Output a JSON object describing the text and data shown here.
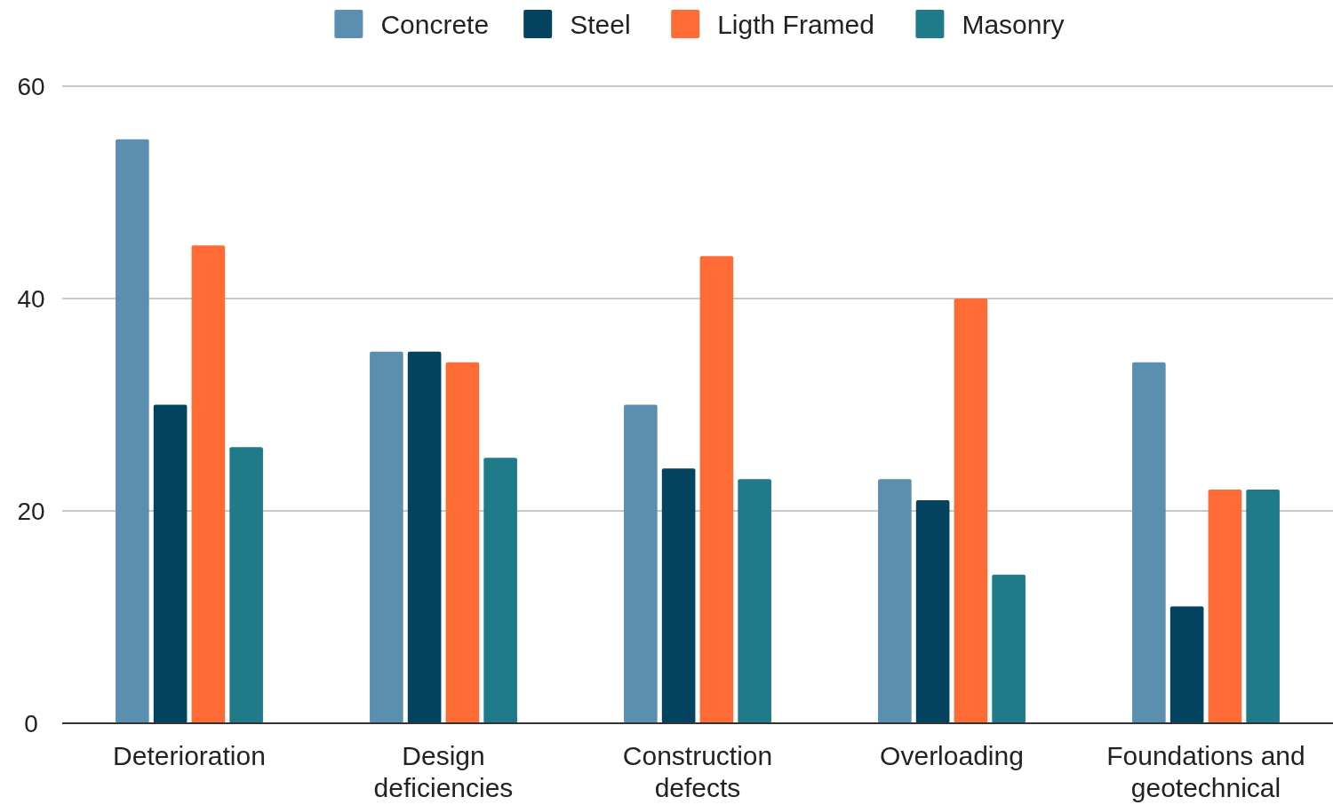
{
  "chart_data": {
    "type": "bar",
    "categories": [
      "Deterioration",
      "Design deficiencies",
      "Construction defects",
      "Overloading",
      "Foundations and geotechnical"
    ],
    "series": [
      {
        "name": "Concrete",
        "color": "#5b8fb0",
        "values": [
          55,
          35,
          30,
          23,
          34
        ]
      },
      {
        "name": "Steel",
        "color": "#03435f",
        "values": [
          30,
          35,
          24,
          21,
          11
        ]
      },
      {
        "name": "Ligth Framed",
        "color": "#ff6b35",
        "values": [
          45,
          34,
          44,
          40,
          22
        ]
      },
      {
        "name": "Masonry",
        "color": "#1f7a89",
        "values": [
          26,
          25,
          23,
          14,
          22
        ]
      }
    ],
    "ylim": [
      0,
      60
    ],
    "yticks": [
      0,
      20,
      40,
      60
    ],
    "grid": "y",
    "legend": "top"
  }
}
